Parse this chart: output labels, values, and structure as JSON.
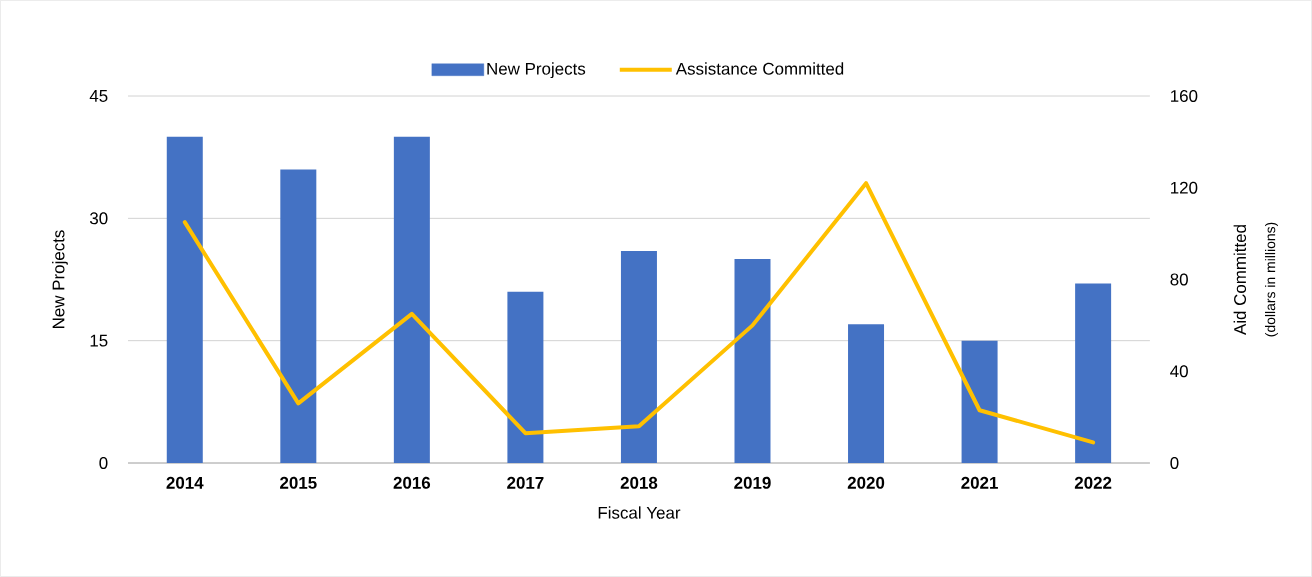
{
  "chart_data": {
    "type": "bar",
    "xlabel": "Fiscal Year",
    "ylabel": "New Projects",
    "y2label": "Aid Committed",
    "annotations": [
      "(dollars in millions)"
    ],
    "categories": [
      "2014",
      "2015",
      "2016",
      "2017",
      "2018",
      "2019",
      "2020",
      "2021",
      "2022"
    ],
    "series": [
      {
        "name": "New Projects",
        "color": "#4472c4",
        "values": [
          40,
          36,
          40,
          21,
          26,
          25,
          17,
          15,
          22
        ]
      },
      {
        "name": "Assistance Committed",
        "type": "line",
        "axis": "y2",
        "color": "#ffc000",
        "values": [
          105,
          26,
          65,
          13,
          16,
          60,
          122,
          23,
          9
        ]
      }
    ],
    "ylim": [
      0,
      45
    ],
    "yticks": [
      0,
      15,
      30,
      45
    ],
    "y2lim": [
      0,
      160
    ],
    "y2ticks": [
      0,
      40,
      80,
      120,
      160
    ],
    "grid": "y",
    "legend": "top"
  }
}
